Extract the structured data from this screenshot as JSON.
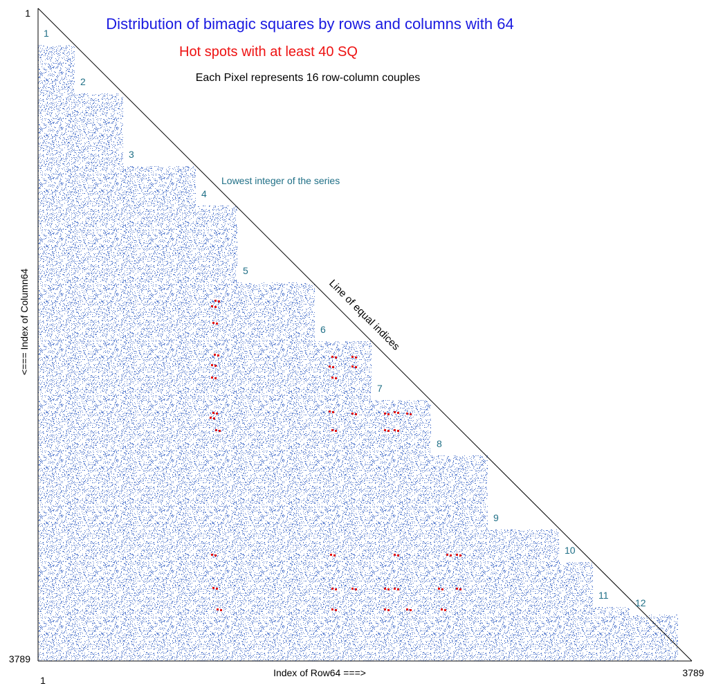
{
  "title": "Distribution of bimagic squares by rows and columns with 64",
  "subtitle": "Hot spots with at least 40 SQ",
  "note": "Each Pixel represents 16 row-column couples",
  "annotations": {
    "lowest": "Lowest integer of the series",
    "diagonal": "Line of equal indices"
  },
  "x_axis": {
    "label": "Index of Row64  ===>",
    "ticks": [
      "1",
      "3789"
    ]
  },
  "y_axis": {
    "label": "<===   Index of Column64",
    "ticks": [
      "1",
      "3789"
    ]
  },
  "blocks": [
    "1",
    "2",
    "3",
    "4",
    "5",
    "6",
    "7",
    "8",
    "9",
    "10",
    "11",
    "12"
  ]
}
